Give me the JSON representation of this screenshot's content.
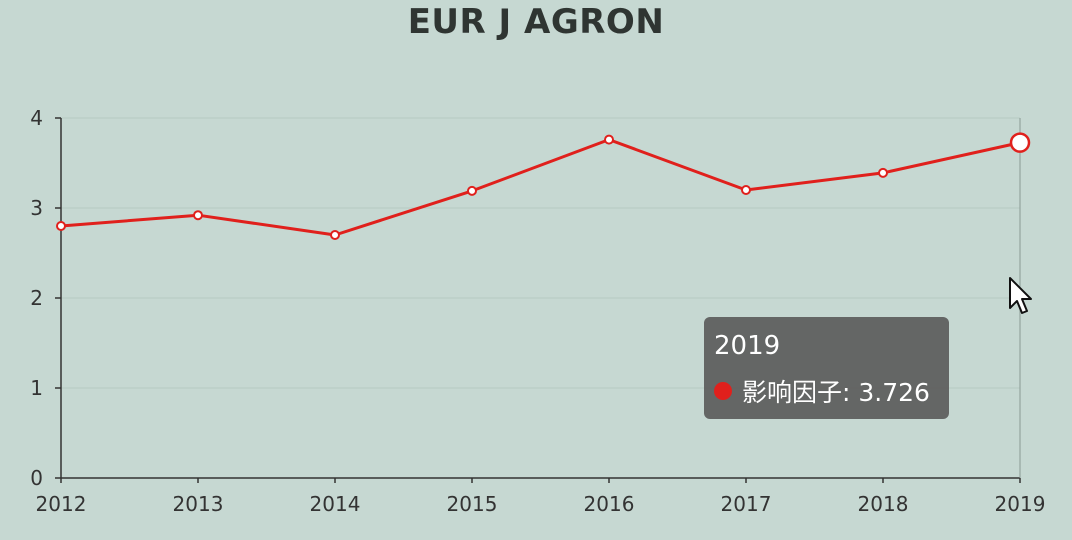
{
  "chart_data": {
    "type": "line",
    "title": "EUR J AGRON",
    "categories": [
      "2012",
      "2013",
      "2014",
      "2015",
      "2016",
      "2017",
      "2018",
      "2019"
    ],
    "series": [
      {
        "name": "影响因子",
        "values": [
          2.8,
          2.92,
          2.7,
          3.19,
          3.76,
          3.2,
          3.39,
          3.726
        ],
        "color": "#e0201c"
      }
    ],
    "ylim": [
      0,
      4
    ],
    "yticks": [
      "0",
      "1",
      "2",
      "3",
      "4"
    ],
    "grid": true,
    "highlighted_index": 7
  },
  "tooltip": {
    "title": "2019",
    "label": "影响因子",
    "value": "3.726",
    "text": "影响因子: 3.726"
  },
  "colors": {
    "background": "#c6d8d2",
    "series": "#e0201c",
    "axis": "#333333",
    "tooltip_bg": "#5c5c5c"
  },
  "icons": {
    "cursor": "mouse-pointer-icon"
  }
}
